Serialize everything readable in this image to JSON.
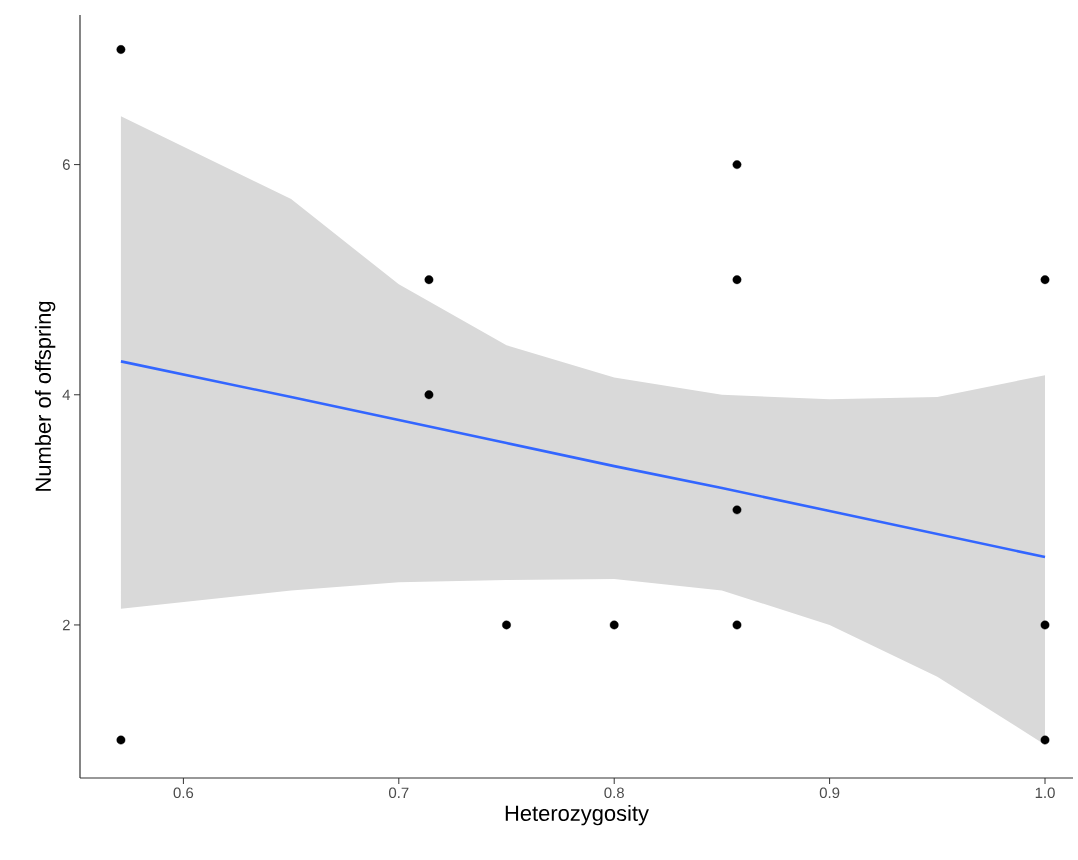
{
  "chart_data": {
    "type": "scatter",
    "xlabel": "Heterozygosity",
    "ylabel": "Number of offspring",
    "xlim": [
      0.552,
      1.013
    ],
    "ylim": [
      0.67,
      7.3
    ],
    "xticks": [
      0.6,
      0.7,
      0.8,
      0.9,
      {
        "value": 1,
        "label": "1.0"
      }
    ],
    "yticks": [
      2,
      4,
      6
    ],
    "series": [
      {
        "color": "#000000",
        "x": [
          0.571,
          0.571,
          0.714,
          0.714,
          0.75,
          0.8,
          0.857,
          0.857,
          0.857,
          0.857,
          1.0,
          1.0,
          1.0
        ],
        "values": [
          7,
          1,
          5,
          4,
          2,
          2,
          6,
          5,
          3,
          2,
          5,
          2,
          1
        ]
      },
      {
        "type": "line",
        "color": "#3366ff",
        "x": [
          0.571,
          0.65,
          0.7,
          0.75,
          0.8,
          0.85,
          0.9,
          0.95,
          1.0
        ],
        "values": [
          4.29,
          3.98,
          3.78,
          3.58,
          3.38,
          3.19,
          2.99,
          2.79,
          2.59
        ],
        "lower": [
          2.14,
          2.3,
          2.37,
          2.39,
          2.4,
          2.3,
          2.0,
          1.55,
          0.96
        ],
        "upper": [
          6.42,
          5.7,
          4.96,
          4.43,
          4.15,
          4.0,
          3.96,
          3.98,
          4.17
        ]
      }
    ]
  }
}
